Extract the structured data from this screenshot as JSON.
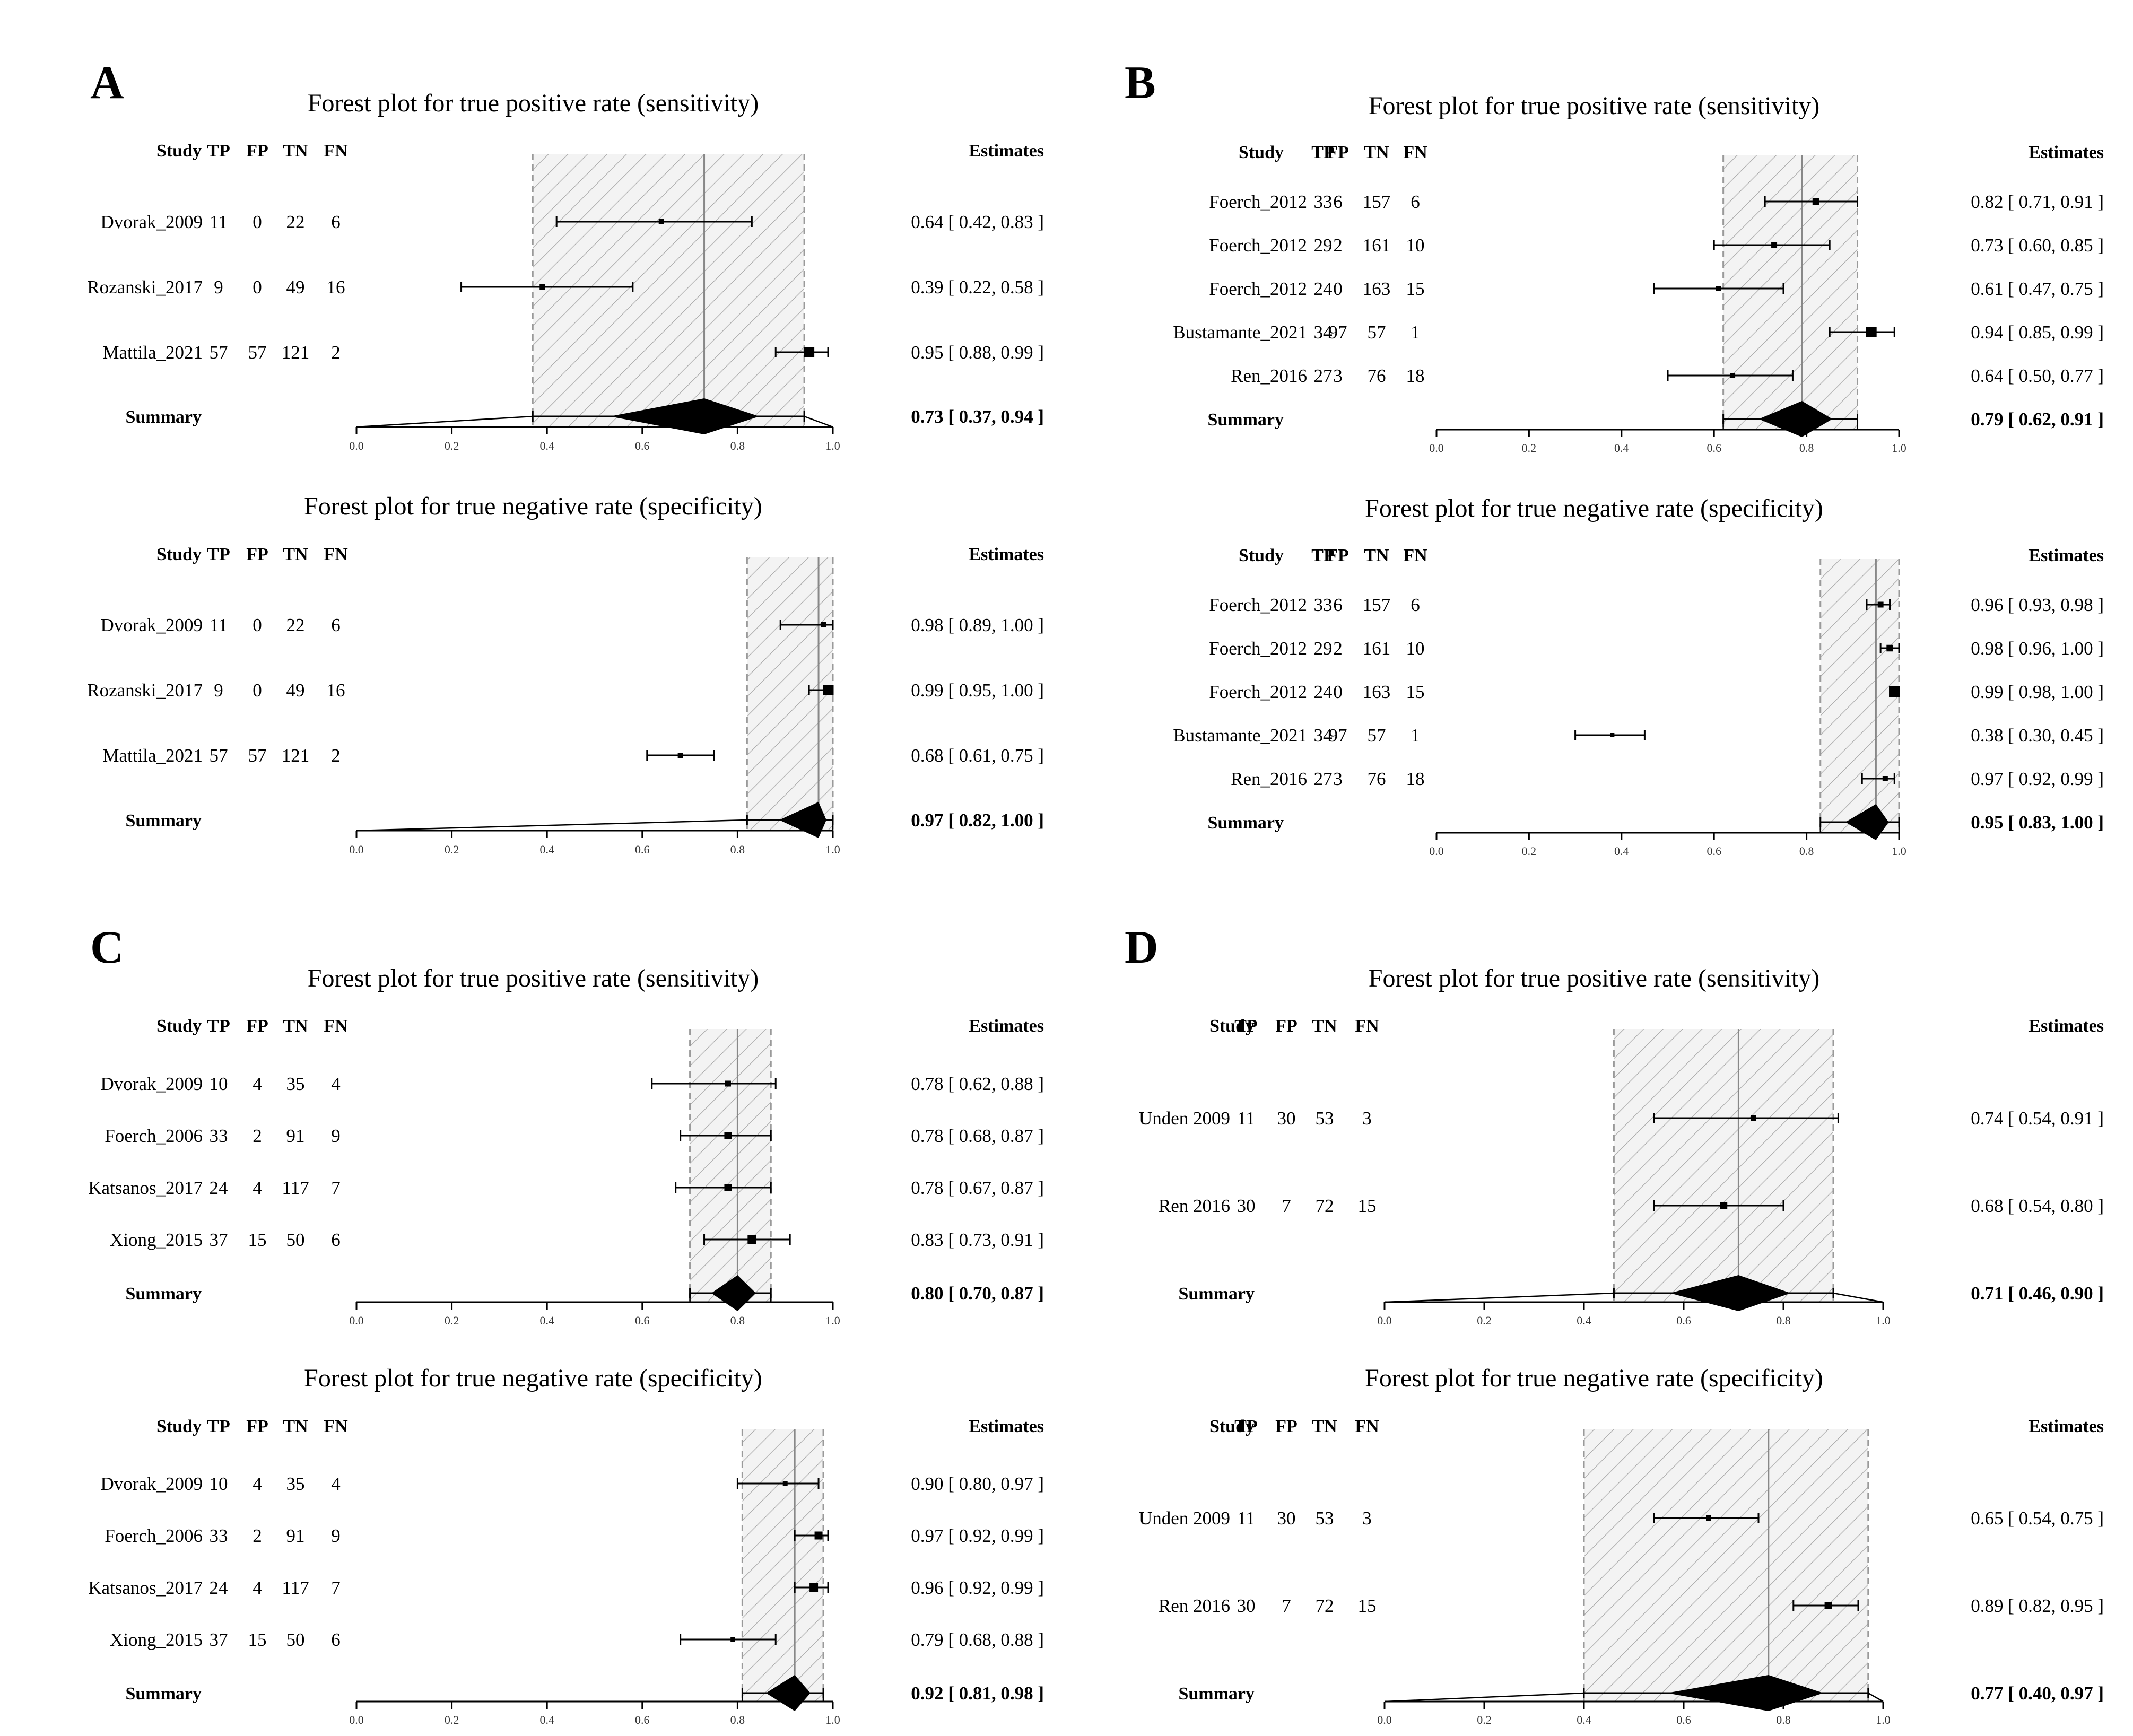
{
  "chart_data": [
    {
      "type": "forest",
      "panel": "A",
      "plots": [
        {
          "measure": "sensitivity",
          "title": "Forest plot for true positive rate (sensitivity)",
          "xlim": [
            0,
            1
          ],
          "xticks": [
            "0.0",
            "0.2",
            "0.4",
            "0.6",
            "0.8",
            "1.0"
          ],
          "headers": [
            "Study",
            "TP",
            "FP",
            "TN",
            "FN",
            "Estimates"
          ],
          "studies": [
            {
              "name": "Dvorak_2009",
              "tp": "11",
              "fp": "0",
              "tn": "22",
              "fn": "6",
              "est": 0.64,
              "lo": 0.42,
              "hi": 0.83,
              "label": "0.64 [ 0.42, 0.83 ]",
              "w": 1
            },
            {
              "name": "Rozanski_2017",
              "tp": "9",
              "fp": "0",
              "tn": "49",
              "fn": "16",
              "est": 0.39,
              "lo": 0.22,
              "hi": 0.58,
              "label": "0.39 [ 0.22, 0.58 ]",
              "w": 1
            },
            {
              "name": "Mattila_2021",
              "tp": "57",
              "fp": "57",
              "tn": "121",
              "fn": "2",
              "est": 0.95,
              "lo": 0.88,
              "hi": 0.99,
              "label": "0.95 [ 0.88, 0.99 ]",
              "w": 3
            }
          ],
          "summary": {
            "name": "Summary",
            "est": 0.73,
            "lo": 0.37,
            "hi": 0.94,
            "label": "0.73 [ 0.37, 0.94 ]",
            "pi_lo": 0.0,
            "pi_hi": 1.0
          }
        },
        {
          "measure": "specificity",
          "title": "Forest plot for true negative rate (specificity)",
          "xlim": [
            0,
            1
          ],
          "xticks": [
            "0.0",
            "0.2",
            "0.4",
            "0.6",
            "0.8",
            "1.0"
          ],
          "headers": [
            "Study",
            "TP",
            "FP",
            "TN",
            "FN",
            "Estimates"
          ],
          "studies": [
            {
              "name": "Dvorak_2009",
              "tp": "11",
              "fp": "0",
              "tn": "22",
              "fn": "6",
              "est": 0.98,
              "lo": 0.89,
              "hi": 1.0,
              "label": "0.98 [ 0.89, 1.00 ]",
              "w": 1
            },
            {
              "name": "Rozanski_2017",
              "tp": "9",
              "fp": "0",
              "tn": "49",
              "fn": "16",
              "est": 0.99,
              "lo": 0.95,
              "hi": 1.0,
              "label": "0.99 [ 0.95, 1.00 ]",
              "w": 3
            },
            {
              "name": "Mattila_2021",
              "tp": "57",
              "fp": "57",
              "tn": "121",
              "fn": "2",
              "est": 0.68,
              "lo": 0.61,
              "hi": 0.75,
              "label": "0.68 [ 0.61, 0.75 ]",
              "w": 1
            }
          ],
          "summary": {
            "name": "Summary",
            "est": 0.97,
            "lo": 0.82,
            "hi": 1.0,
            "label": "0.97 [ 0.82, 1.00 ]",
            "pi_lo": 0.0,
            "pi_hi": 1.0
          }
        }
      ]
    },
    {
      "type": "forest",
      "panel": "B",
      "plots": [
        {
          "measure": "sensitivity",
          "title": "Forest plot for true positive rate (sensitivity)",
          "xlim": [
            0,
            1
          ],
          "xticks": [
            "0.0",
            "0.2",
            "0.4",
            "0.6",
            "0.8",
            "1.0"
          ],
          "headers": [
            "Study",
            "TP",
            "FP",
            "TN",
            "FN",
            "Estimates"
          ],
          "studies": [
            {
              "name": "Foerch_2012",
              "tp": "33",
              "fp": "6",
              "tn": "157",
              "fn": "6",
              "est": 0.82,
              "lo": 0.71,
              "hi": 0.91,
              "label": "0.82 [ 0.71, 0.91 ]",
              "w": 1.5
            },
            {
              "name": "Foerch_2012",
              "tp": "29",
              "fp": "2",
              "tn": "161",
              "fn": "10",
              "est": 0.73,
              "lo": 0.6,
              "hi": 0.85,
              "label": "0.73 [ 0.60, 0.85 ]",
              "w": 1.2
            },
            {
              "name": "Foerch_2012",
              "tp": "24",
              "fp": "0",
              "tn": "163",
              "fn": "15",
              "est": 0.61,
              "lo": 0.47,
              "hi": 0.75,
              "label": "0.61 [ 0.47, 0.75 ]",
              "w": 1
            },
            {
              "name": "Bustamante_2021",
              "tp": "34",
              "fp": "97",
              "tn": "57",
              "fn": "1",
              "est": 0.94,
              "lo": 0.85,
              "hi": 0.99,
              "label": "0.94 [ 0.85, 0.99 ]",
              "w": 3
            },
            {
              "name": "Ren_2016",
              "tp": "27",
              "fp": "3",
              "tn": "76",
              "fn": "18",
              "est": 0.64,
              "lo": 0.5,
              "hi": 0.77,
              "label": "0.64 [ 0.50, 0.77 ]",
              "w": 1
            }
          ],
          "summary": {
            "name": "Summary",
            "est": 0.79,
            "lo": 0.62,
            "hi": 0.91,
            "label": "0.79 [ 0.62, 0.91 ]",
            "pi_lo": 0.62,
            "pi_hi": 0.91
          }
        },
        {
          "measure": "specificity",
          "title": "Forest plot for true negative rate (specificity)",
          "xlim": [
            0,
            1
          ],
          "xticks": [
            "0.0",
            "0.2",
            "0.4",
            "0.6",
            "0.8",
            "1.0"
          ],
          "headers": [
            "Study",
            "TP",
            "FP",
            "TN",
            "FN",
            "Estimates"
          ],
          "studies": [
            {
              "name": "Foerch_2012",
              "tp": "33",
              "fp": "6",
              "tn": "157",
              "fn": "6",
              "est": 0.96,
              "lo": 0.93,
              "hi": 0.98,
              "label": "0.96 [ 0.93, 0.98 ]",
              "w": 1.2
            },
            {
              "name": "Foerch_2012",
              "tp": "29",
              "fp": "2",
              "tn": "161",
              "fn": "10",
              "est": 0.98,
              "lo": 0.96,
              "hi": 1.0,
              "label": "0.98 [ 0.96, 1.00 ]",
              "w": 1.5
            },
            {
              "name": "Foerch_2012",
              "tp": "24",
              "fp": "0",
              "tn": "163",
              "fn": "15",
              "est": 0.99,
              "lo": 0.98,
              "hi": 1.0,
              "label": "0.99 [ 0.98, 1.00 ]",
              "w": 3
            },
            {
              "name": "Bustamante_2021",
              "tp": "34",
              "fp": "97",
              "tn": "57",
              "fn": "1",
              "est": 0.38,
              "lo": 0.3,
              "hi": 0.45,
              "label": "0.38 [ 0.30, 0.45 ]",
              "w": 0.6
            },
            {
              "name": "Ren_2016",
              "tp": "27",
              "fp": "3",
              "tn": "76",
              "fn": "18",
              "est": 0.97,
              "lo": 0.92,
              "hi": 0.99,
              "label": "0.97 [ 0.92, 0.99 ]",
              "w": 1
            }
          ],
          "summary": {
            "name": "Summary",
            "est": 0.95,
            "lo": 0.83,
            "hi": 1.0,
            "label": "0.95 [ 0.83, 1.00 ]",
            "pi_lo": 0.83,
            "pi_hi": 1.0
          }
        }
      ]
    },
    {
      "type": "forest",
      "panel": "C",
      "plots": [
        {
          "measure": "sensitivity",
          "title": "Forest plot for true positive rate (sensitivity)",
          "xlim": [
            0,
            1
          ],
          "xticks": [
            "0.0",
            "0.2",
            "0.4",
            "0.6",
            "0.8",
            "1.0"
          ],
          "headers": [
            "Study",
            "TP",
            "FP",
            "TN",
            "FN",
            "Estimates"
          ],
          "studies": [
            {
              "name": "Dvorak_2009",
              "tp": "10",
              "fp": "4",
              "tn": "35",
              "fn": "4",
              "est": 0.78,
              "lo": 0.62,
              "hi": 0.88,
              "label": "0.78 [ 0.62, 0.88 ]",
              "w": 1.2
            },
            {
              "name": "Foerch_2006",
              "tp": "33",
              "fp": "2",
              "tn": "91",
              "fn": "9",
              "est": 0.78,
              "lo": 0.68,
              "hi": 0.87,
              "label": "0.78 [ 0.68, 0.87 ]",
              "w": 1.8
            },
            {
              "name": "Katsanos_2017",
              "tp": "24",
              "fp": "4",
              "tn": "117",
              "fn": "7",
              "est": 0.78,
              "lo": 0.67,
              "hi": 0.87,
              "label": "0.78 [ 0.67, 0.87 ]",
              "w": 1.8
            },
            {
              "name": "Xiong_2015",
              "tp": "37",
              "fp": "15",
              "tn": "50",
              "fn": "6",
              "est": 0.83,
              "lo": 0.73,
              "hi": 0.91,
              "label": "0.83 [ 0.73, 0.91 ]",
              "w": 2.2
            }
          ],
          "summary": {
            "name": "Summary",
            "est": 0.8,
            "lo": 0.7,
            "hi": 0.87,
            "label": "0.80 [ 0.70, 0.87 ]",
            "pi_lo": 0.7,
            "pi_hi": 0.87
          }
        },
        {
          "measure": "specificity",
          "title": "Forest plot for true negative rate (specificity)",
          "xlim": [
            0,
            1
          ],
          "xticks": [
            "0.0",
            "0.2",
            "0.4",
            "0.6",
            "0.8",
            "1.0"
          ],
          "headers": [
            "Study",
            "TP",
            "FP",
            "TN",
            "FN",
            "Estimates"
          ],
          "studies": [
            {
              "name": "Dvorak_2009",
              "tp": "10",
              "fp": "4",
              "tn": "35",
              "fn": "4",
              "est": 0.9,
              "lo": 0.8,
              "hi": 0.97,
              "label": "0.90 [ 0.80, 0.97 ]",
              "w": 0.8
            },
            {
              "name": "Foerch_2006",
              "tp": "33",
              "fp": "2",
              "tn": "91",
              "fn": "9",
              "est": 0.97,
              "lo": 0.92,
              "hi": 0.99,
              "label": "0.97 [ 0.92, 0.99 ]",
              "w": 2
            },
            {
              "name": "Katsanos_2017",
              "tp": "24",
              "fp": "4",
              "tn": "117",
              "fn": "7",
              "est": 0.96,
              "lo": 0.92,
              "hi": 0.99,
              "label": "0.96 [ 0.92, 0.99 ]",
              "w": 2.2
            },
            {
              "name": "Xiong_2015",
              "tp": "37",
              "fp": "15",
              "tn": "50",
              "fn": "6",
              "est": 0.79,
              "lo": 0.68,
              "hi": 0.88,
              "label": "0.79 [ 0.68, 0.88 ]",
              "w": 0.7
            }
          ],
          "summary": {
            "name": "Summary",
            "est": 0.92,
            "lo": 0.81,
            "hi": 0.98,
            "label": "0.92 [ 0.81, 0.98 ]",
            "pi_lo": 0.81,
            "pi_hi": 0.98
          }
        }
      ]
    },
    {
      "type": "forest",
      "panel": "D",
      "plots": [
        {
          "measure": "sensitivity",
          "title": "Forest plot for true positive rate (sensitivity)",
          "xlim": [
            0,
            1
          ],
          "xticks": [
            "0.0",
            "0.2",
            "0.4",
            "0.6",
            "0.8",
            "1.0"
          ],
          "headers": [
            "Study",
            "TP",
            "FP",
            "TN",
            "FN",
            "Estimates"
          ],
          "studies": [
            {
              "name": "Unden 2009",
              "tp": "11",
              "fp": "30",
              "tn": "53",
              "fn": "3",
              "est": 0.74,
              "lo": 0.54,
              "hi": 0.91,
              "label": "0.74 [ 0.54, 0.91 ]",
              "w": 1
            },
            {
              "name": "Ren 2016",
              "tp": "30",
              "fp": "7",
              "tn": "72",
              "fn": "15",
              "est": 0.68,
              "lo": 0.54,
              "hi": 0.8,
              "label": "0.68 [ 0.54, 0.80 ]",
              "w": 1.8
            }
          ],
          "summary": {
            "name": "Summary",
            "est": 0.71,
            "lo": 0.46,
            "hi": 0.9,
            "label": "0.71 [ 0.46, 0.90 ]",
            "pi_lo": 0.0,
            "pi_hi": 1.0
          }
        },
        {
          "measure": "specificity",
          "title": "Forest plot for true negative rate (specificity)",
          "xlim": [
            0,
            1
          ],
          "xticks": [
            "0.0",
            "0.2",
            "0.4",
            "0.6",
            "0.8",
            "1.0"
          ],
          "headers": [
            "Study",
            "TP",
            "FP",
            "TN",
            "FN",
            "Estimates"
          ],
          "studies": [
            {
              "name": "Unden 2009",
              "tp": "11",
              "fp": "30",
              "tn": "53",
              "fn": "3",
              "est": 0.65,
              "lo": 0.54,
              "hi": 0.75,
              "label": "0.65 [ 0.54, 0.75 ]",
              "w": 1
            },
            {
              "name": "Ren 2016",
              "tp": "30",
              "fp": "7",
              "tn": "72",
              "fn": "15",
              "est": 0.89,
              "lo": 0.82,
              "hi": 0.95,
              "label": "0.89 [ 0.82, 0.95 ]",
              "w": 1.8
            }
          ],
          "summary": {
            "name": "Summary",
            "est": 0.77,
            "lo": 0.4,
            "hi": 0.97,
            "label": "0.77 [ 0.40, 0.97 ]",
            "pi_lo": 0.0,
            "pi_hi": 1.0
          }
        }
      ]
    }
  ]
}
